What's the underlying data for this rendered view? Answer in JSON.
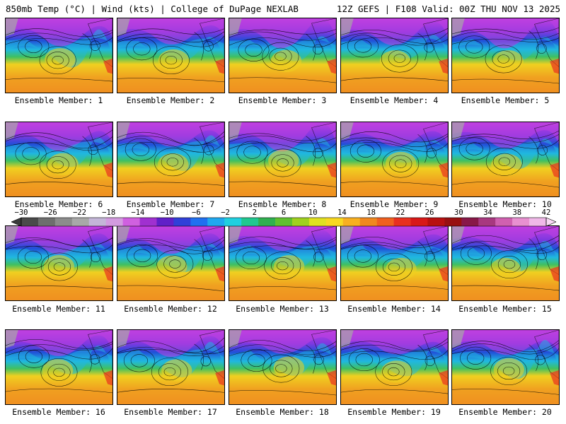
{
  "header": {
    "left": "850mb Temp (°C) | Wind (kts) | College of DuPage NEXLAB",
    "right": "12Z GEFS | F108 Valid: 00Z THU NOV 13 2025"
  },
  "member_label_prefix": "Ensemble Member: ",
  "members": [
    1,
    2,
    3,
    4,
    5,
    6,
    7,
    8,
    9,
    10,
    11,
    12,
    13,
    14,
    15,
    16,
    17,
    18,
    19,
    20
  ],
  "colorbar": {
    "tick_labels": [
      "−30",
      "−26",
      "−22",
      "−18",
      "−14",
      "−10",
      "−6",
      "−2",
      "2",
      "6",
      "10",
      "14",
      "18",
      "22",
      "26",
      "30",
      "34",
      "38",
      "42"
    ],
    "tick_values": [
      -30,
      -26,
      -22,
      -18,
      -14,
      -10,
      -6,
      -2,
      2,
      6,
      10,
      14,
      18,
      22,
      26,
      30,
      34,
      38,
      42
    ],
    "colors": [
      "#4a4a4a",
      "#6e6e6e",
      "#8c8c8c",
      "#a8a8a8",
      "#c4b6d8",
      "#d39be0",
      "#d060e0",
      "#a030d0",
      "#6020c8",
      "#3040d8",
      "#2070f0",
      "#20a8f0",
      "#20d0e0",
      "#20c890",
      "#30b050",
      "#60c030",
      "#a0d020",
      "#e0e020",
      "#f8d820",
      "#f8b020",
      "#f08820",
      "#f06020",
      "#e83020",
      "#d81818",
      "#b81010",
      "#981010",
      "#881848",
      "#a83880",
      "#d060b0",
      "#e890d0",
      "#f0b8e8"
    ]
  },
  "map_colors": {
    "polar": "#c040e0",
    "cold": "#2050d8",
    "cool": "#20b8e0",
    "mild": "#40c060",
    "warm": "#f0d020",
    "hot": "#f0a020",
    "land": "#a8a8a8"
  }
}
